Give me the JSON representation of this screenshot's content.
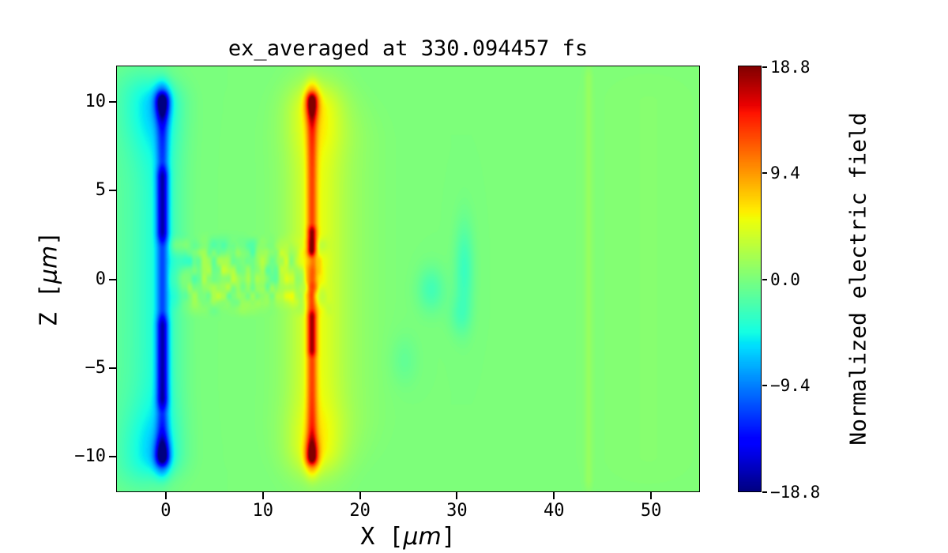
{
  "chart_data": {
    "type": "heatmap",
    "title": "ex_averaged at 330.094457 fs",
    "xlabel": {
      "pre": "X [",
      "unit": "μm",
      "post": "]"
    },
    "ylabel": {
      "pre": "Z [",
      "unit": "μm",
      "post": "]"
    },
    "colorbar_label": "Normalized electric field",
    "colormap": "jet",
    "xlim": [
      -5,
      55
    ],
    "ylim": [
      -12,
      12
    ],
    "clim": [
      -18.8,
      18.8
    ],
    "background": 0,
    "xticks": [
      {
        "v": 0,
        "label": "0"
      },
      {
        "v": 10,
        "label": "10"
      },
      {
        "v": 20,
        "label": "20"
      },
      {
        "v": 30,
        "label": "30"
      },
      {
        "v": 40,
        "label": "40"
      },
      {
        "v": 50,
        "label": "50"
      }
    ],
    "yticks": [
      {
        "v": 10,
        "label": "10"
      },
      {
        "v": 5,
        "label": "5"
      },
      {
        "v": 0,
        "label": "0"
      },
      {
        "v": -5,
        "label": "−5"
      },
      {
        "v": -10,
        "label": "−10"
      }
    ],
    "colorbar_ticks": [
      {
        "v": 18.8,
        "label": "18.8"
      },
      {
        "v": 9.4,
        "label": "9.4"
      },
      {
        "v": 0.0,
        "label": "0.0"
      },
      {
        "v": -9.4,
        "label": "−9.4"
      },
      {
        "v": -18.8,
        "label": "−18.8"
      }
    ],
    "features": [
      {
        "type": "vstripe",
        "x": -0.3,
        "sx": 0.45,
        "z0": -10.4,
        "z1": 10.4,
        "edge": 0.4,
        "amp": -7.5
      },
      {
        "type": "vstripe",
        "x": -0.5,
        "sx": 1.6,
        "z0": -10.8,
        "z1": 10.8,
        "edge": 1.0,
        "amp": -3.5
      },
      {
        "type": "vstripe",
        "x": -3.6,
        "sx": 2.2,
        "z0": -11.8,
        "z1": 11.8,
        "edge": 1.5,
        "amp": -1.6
      },
      {
        "type": "vstripe",
        "x": -0.3,
        "sx": 0.42,
        "z0": 2.2,
        "z1": 6.2,
        "edge": 0.5,
        "amp": -6
      },
      {
        "type": "vstripe",
        "x": -0.3,
        "sx": 0.42,
        "z0": -7.2,
        "z1": -2.2,
        "edge": 0.5,
        "amp": -6
      },
      {
        "type": "blob",
        "x": -0.3,
        "z": 10.0,
        "sx": 0.55,
        "sz": 0.7,
        "amp": -10
      },
      {
        "type": "blob",
        "x": -0.3,
        "z": -10.0,
        "sx": 0.55,
        "sz": 0.7,
        "amp": -10
      },
      {
        "type": "blob",
        "x": -1.6,
        "z": 9.6,
        "sx": 2.0,
        "sz": 1.7,
        "amp": -2.6
      },
      {
        "type": "blob",
        "x": -1.6,
        "z": -9.6,
        "sx": 2.0,
        "sz": 1.7,
        "amp": -2.6
      },
      {
        "type": "vstripe",
        "x": 15.1,
        "sx": 0.38,
        "z0": -10.4,
        "z1": 10.4,
        "edge": 0.35,
        "amp": 8
      },
      {
        "type": "vstripe",
        "x": 15.4,
        "sx": 1.8,
        "z0": -10.7,
        "z1": 10.7,
        "edge": 1.2,
        "amp": 3.2
      },
      {
        "type": "vstripe",
        "x": 16.6,
        "sx": 3.2,
        "z0": -9.5,
        "z1": 9.5,
        "edge": 2.0,
        "amp": 1.8
      },
      {
        "type": "vstripe",
        "x": 15.1,
        "sx": 0.32,
        "z0": 1.4,
        "z1": 2.9,
        "edge": 0.3,
        "amp": 6
      },
      {
        "type": "vstripe",
        "x": 15.1,
        "sx": 0.32,
        "z0": -4.3,
        "z1": -1.9,
        "edge": 0.3,
        "amp": 5
      },
      {
        "type": "blob",
        "x": 15.1,
        "z": 10.0,
        "sx": 0.5,
        "sz": 0.7,
        "amp": 9
      },
      {
        "type": "blob",
        "x": 15.1,
        "z": -10.0,
        "sx": 0.5,
        "sz": 0.7,
        "amp": 9
      },
      {
        "type": "blob",
        "x": 15.6,
        "z": 9.7,
        "sx": 2.2,
        "sz": 1.6,
        "amp": 2.2
      },
      {
        "type": "blob",
        "x": 15.6,
        "z": -9.7,
        "sx": 2.2,
        "sz": 1.6,
        "amp": 2.2
      },
      {
        "type": "noise",
        "x0": 0.5,
        "x1": 17.0,
        "z0": -1.9,
        "z1": 2.3,
        "amp": 2.2,
        "scale": 1.0,
        "seed": 7
      },
      {
        "type": "noise",
        "x0": 2.0,
        "x1": 16.0,
        "z0": -1.3,
        "z1": 1.8,
        "amp": 1.6,
        "scale": 2.0,
        "seed": 13
      },
      {
        "type": "blob",
        "x": 27.4,
        "z": -0.6,
        "sx": 1.0,
        "sz": 0.9,
        "amp": -2.6
      },
      {
        "type": "blob",
        "x": 30.8,
        "z": 0.5,
        "sx": 0.7,
        "sz": 1.9,
        "amp": -3.0
      },
      {
        "type": "blob",
        "x": 30.3,
        "z": -2.1,
        "sx": 0.8,
        "sz": 0.8,
        "amp": -1.6
      },
      {
        "type": "blob",
        "x": 24.6,
        "z": -4.6,
        "sx": 1.0,
        "sz": 1.0,
        "amp": -1.2
      },
      {
        "type": "vstripe",
        "x": 43.6,
        "sx": 0.3,
        "z0": -11.9,
        "z1": 11.9,
        "edge": 0.6,
        "amp": 1.0
      },
      {
        "type": "vstripe",
        "x": 49.8,
        "sx": 5.0,
        "z0": -12.0,
        "z1": 12.0,
        "edge": 2.0,
        "amp": 0.45
      }
    ]
  }
}
